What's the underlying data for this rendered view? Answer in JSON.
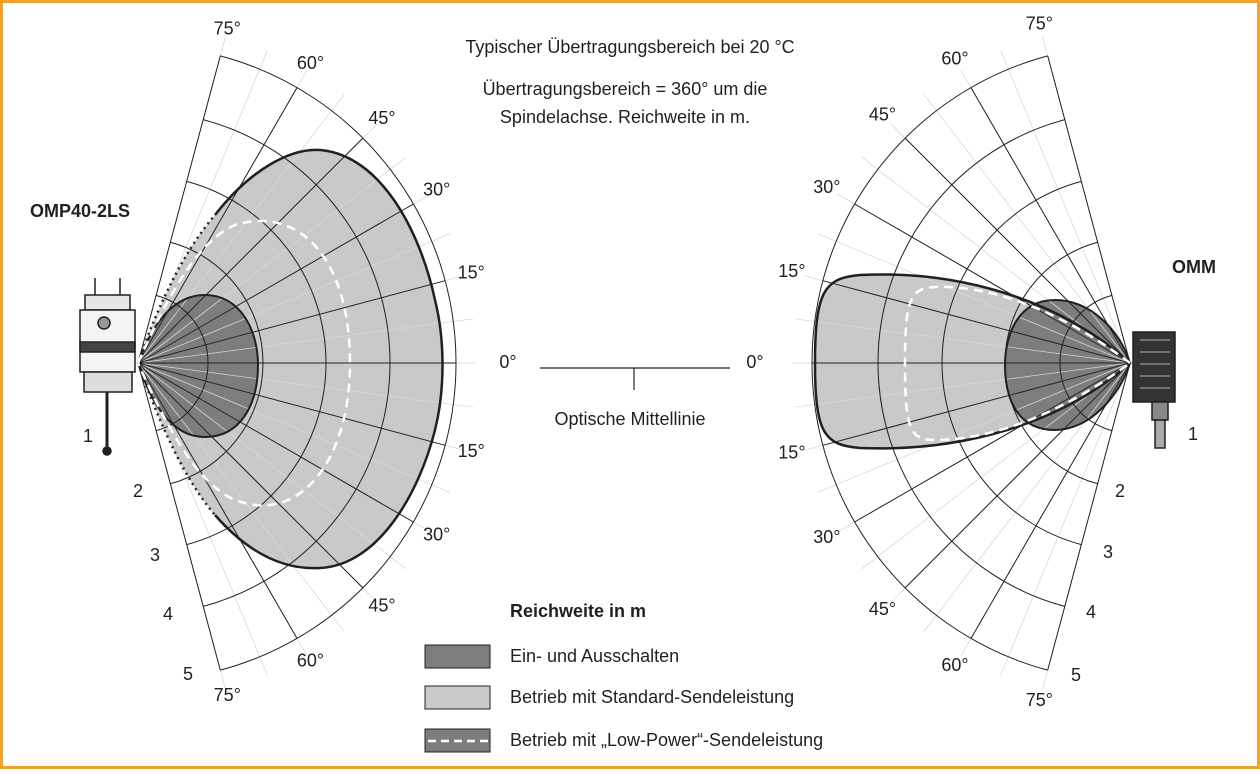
{
  "header": {
    "lines": [
      "Typischer Übertragungsbereich bei 20 °C",
      "Übertragungsbereich = 360° um die",
      "Spindelachse. Reichweite in m."
    ]
  },
  "left": {
    "label": "OMP40-2LS",
    "angle_labels": [
      "75°",
      "60°",
      "45°",
      "30°",
      "15°",
      "0°",
      "15°",
      "30°",
      "45°",
      "60°",
      "75°"
    ],
    "range_labels": [
      "1",
      "2",
      "3",
      "4",
      "5"
    ]
  },
  "right": {
    "label": "OMM",
    "angle_labels": [
      "75°",
      "60°",
      "45°",
      "30°",
      "15°",
      "0°",
      "15°",
      "30°",
      "45°",
      "60°",
      "75°"
    ],
    "range_labels": [
      "1",
      "2",
      "3",
      "4",
      "5"
    ]
  },
  "centerline": {
    "label": "Optische Mittellinie"
  },
  "legend": {
    "title": "Reichweite in m",
    "items": [
      "Ein- und Ausschalten",
      "Betrieb mit Standard-Sendeleistung",
      "Betrieb mit „Low-Power“-Sendeleistung"
    ]
  }
}
